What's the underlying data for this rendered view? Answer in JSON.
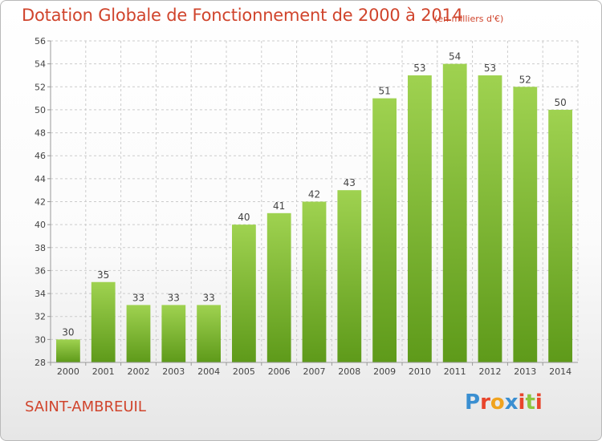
{
  "header": {
    "title": "Dotation Globale de Fonctionnement de 2000 à 2014",
    "subtitle": "(en milliers d'€)"
  },
  "footer": {
    "commune": "SAINT-AMBREUIL",
    "brand_letters": [
      "P",
      "r",
      "o",
      "x",
      "i",
      "t",
      "i"
    ],
    "brand_colors": [
      "#3a8fd1",
      "#e8452c",
      "#f0a31e",
      "#3a8fd1",
      "#e8452c",
      "#8cc63f",
      "#e8452c"
    ]
  },
  "colors": {
    "bar_top": "#9fd250",
    "bar_bottom": "#5e9a1a",
    "grid": "#cccccc",
    "axis": "#999999",
    "text": "#444444"
  },
  "chart_data": {
    "type": "bar",
    "categories": [
      "2000",
      "2001",
      "2002",
      "2003",
      "2004",
      "2005",
      "2006",
      "2007",
      "2008",
      "2009",
      "2010",
      "2011",
      "2012",
      "2013",
      "2014"
    ],
    "values": [
      30,
      35,
      33,
      33,
      33,
      40,
      41,
      42,
      43,
      51,
      53,
      54,
      53,
      52,
      50
    ],
    "title": "Dotation Globale de Fonctionnement de 2000 à 2014",
    "subtitle": "(en milliers d'€)",
    "ylim": [
      28,
      56
    ],
    "yticks": [
      28,
      30,
      32,
      34,
      36,
      38,
      40,
      42,
      44,
      46,
      48,
      50,
      52,
      54,
      56
    ],
    "grid": true,
    "data_labels": true
  }
}
